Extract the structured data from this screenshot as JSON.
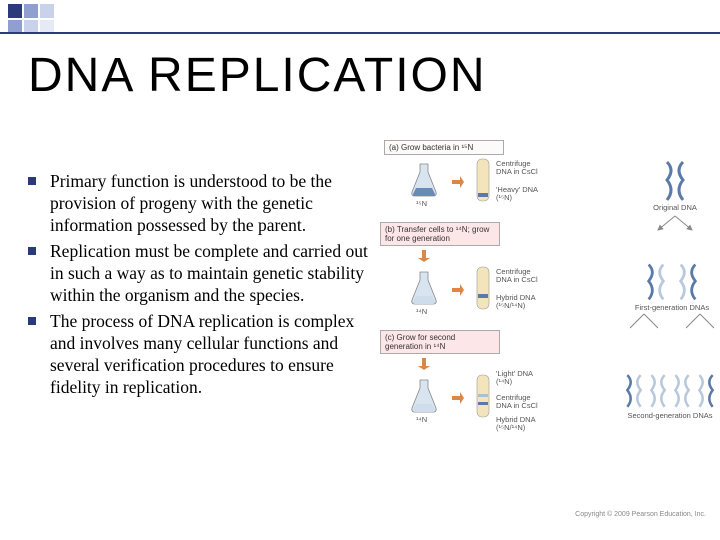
{
  "title": "DNA REPLICATION",
  "decor": {
    "colors": [
      "#2a3a7a",
      "#8f9fcf",
      "#c9d2ea",
      "#e6eaf5",
      "#ffffff"
    ],
    "pattern": [
      [
        0,
        1,
        2,
        4,
        4,
        4,
        4,
        4,
        4,
        4
      ],
      [
        1,
        2,
        3,
        4,
        4,
        4,
        4,
        4,
        4,
        4
      ]
    ],
    "line_color": "#2a3a7a"
  },
  "bullets": [
    "Primary function is understood to be the provision of progeny with the genetic information possessed by the parent.",
    "Replication must be complete and carried out in such a way as to maintain genetic stability within the organism and the species.",
    "The process of DNA replication is complex and involves many cellular functions and several verification procedures to ensure fidelity in replication."
  ],
  "diagram": {
    "step_a": "(a) Grow bacteria in ¹⁵N",
    "step_b": "(b) Transfer cells to ¹⁴N; grow for one generation",
    "step_c": "(c) Grow for second generation in ¹⁴N",
    "flask_15n": "¹⁵N",
    "flask_14n_1": "¹⁴N",
    "flask_14n_2": "¹⁴N",
    "centrifuge": "Centrifuge DNA in CsCl",
    "heavy_dna": "'Heavy' DNA (¹⁵N)",
    "hybrid_dna": "Hybrid DNA (¹⁵N/¹⁴N)",
    "light_dna": "'Light' DNA (¹⁴N)",
    "original": "Original DNA",
    "first_gen": "First-generation DNAs",
    "second_gen": "Second-generation DNAs",
    "copyright": "Copyright © 2009 Pearson Education, Inc.",
    "colors": {
      "flask_fill": "#d8e4f0",
      "flask_liquid_heavy": "#6a8ab8",
      "flask_liquid_light": "#cfdcec",
      "tube_fill": "#f3e4bb",
      "band_heavy": "#5a7aa8",
      "band_light": "#a8c0d8",
      "arrow": "#d88848",
      "helix_dark": "#5a7aa8",
      "helix_light": "#b8c8dd",
      "label_border": "#888888"
    }
  }
}
